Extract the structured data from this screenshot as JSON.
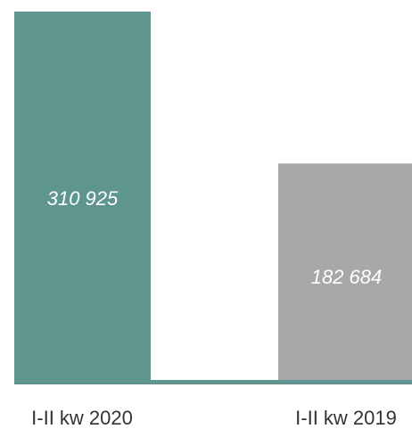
{
  "chart_data": {
    "type": "bar",
    "categories": [
      "I-II kw 2020",
      "I-II kw 2019"
    ],
    "values": [
      310925,
      182684
    ],
    "value_labels": [
      "310 925",
      "182 684"
    ],
    "colors": [
      "#5e968f",
      "#a8a8aa"
    ],
    "baseline_color": "#5e968f",
    "title": "",
    "xlabel": "",
    "ylabel": "",
    "ylim": [
      0,
      310925
    ],
    "grid": false,
    "legend": "none"
  }
}
